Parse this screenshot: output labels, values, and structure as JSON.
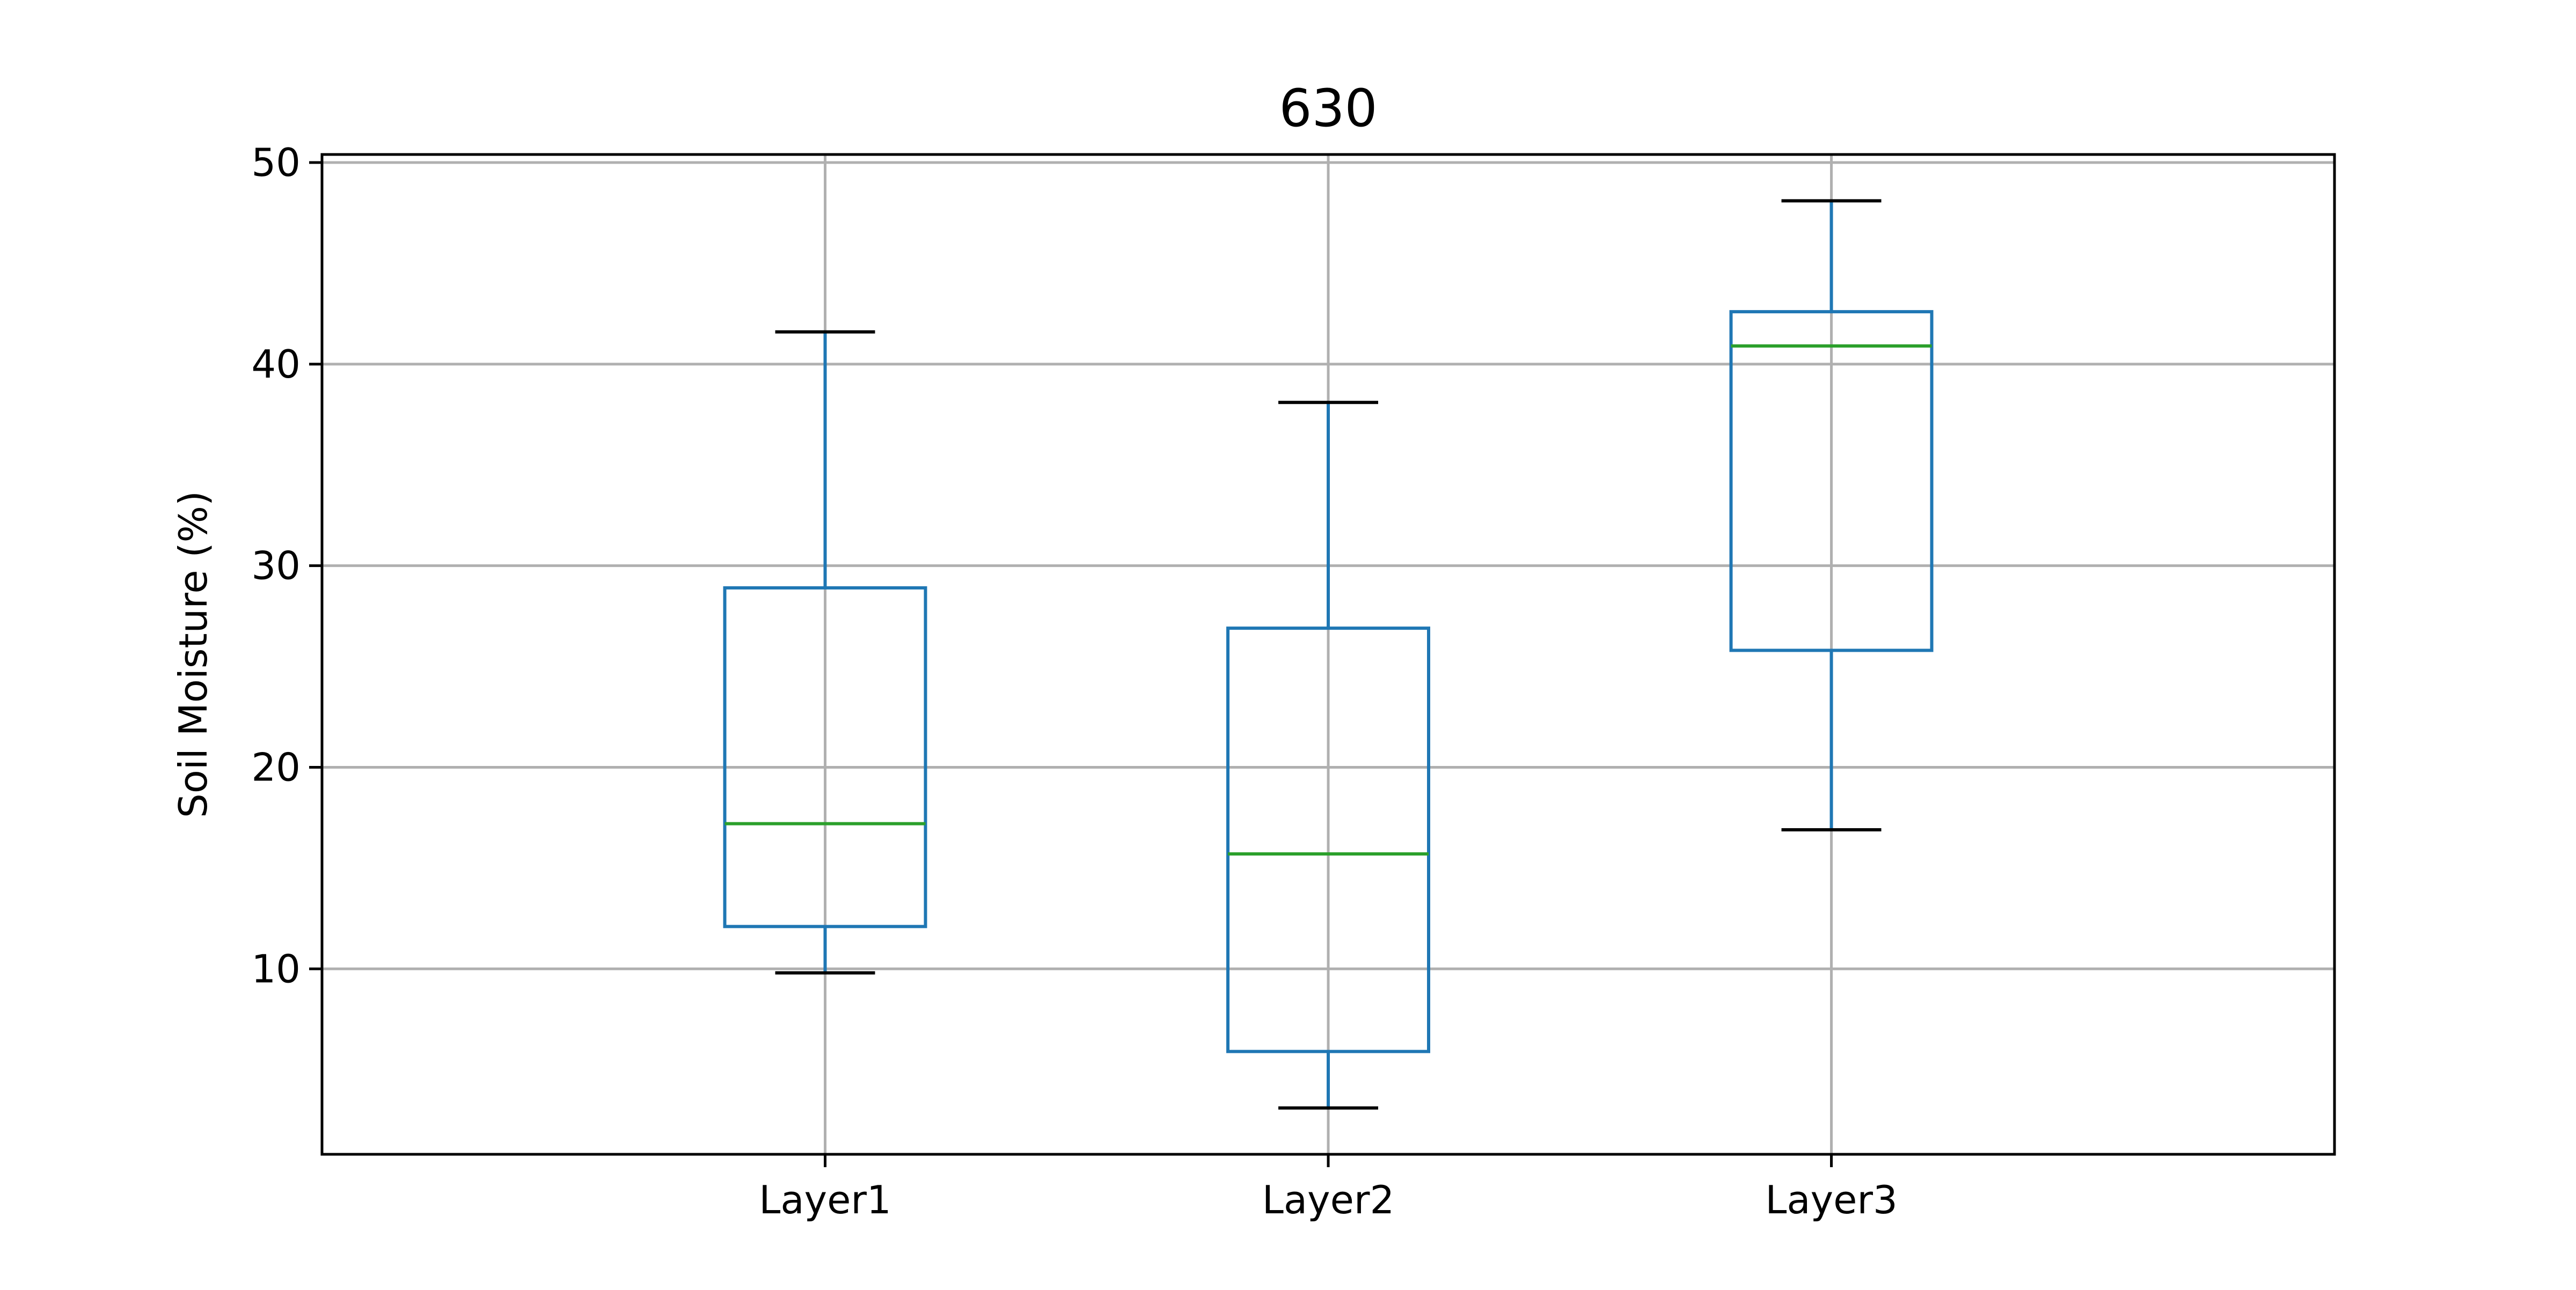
{
  "chart_data": {
    "type": "box",
    "title": "630",
    "xlabel": "",
    "ylabel": "Soil Moisture (%)",
    "ylim": [
      0.8,
      50.4
    ],
    "yticks": [
      10,
      20,
      30,
      40,
      50
    ],
    "grid": true,
    "categories": [
      "Layer1",
      "Layer2",
      "Layer3"
    ],
    "boxes": [
      {
        "category": "Layer1",
        "whisker_low": 9.8,
        "q1": 12.1,
        "median": 17.2,
        "q3": 28.9,
        "whisker_high": 41.6
      },
      {
        "category": "Layer2",
        "whisker_low": 3.1,
        "q1": 5.9,
        "median": 15.7,
        "q3": 26.9,
        "whisker_high": 38.1
      },
      {
        "category": "Layer3",
        "whisker_low": 16.9,
        "q1": 25.8,
        "median": 40.9,
        "q3": 42.6,
        "whisker_high": 48.1
      }
    ],
    "colors": {
      "box": "#1f77b4",
      "median": "#2ca02c",
      "cap": "#000000",
      "grid": "#b0b0b0",
      "axes": "#000000"
    }
  }
}
